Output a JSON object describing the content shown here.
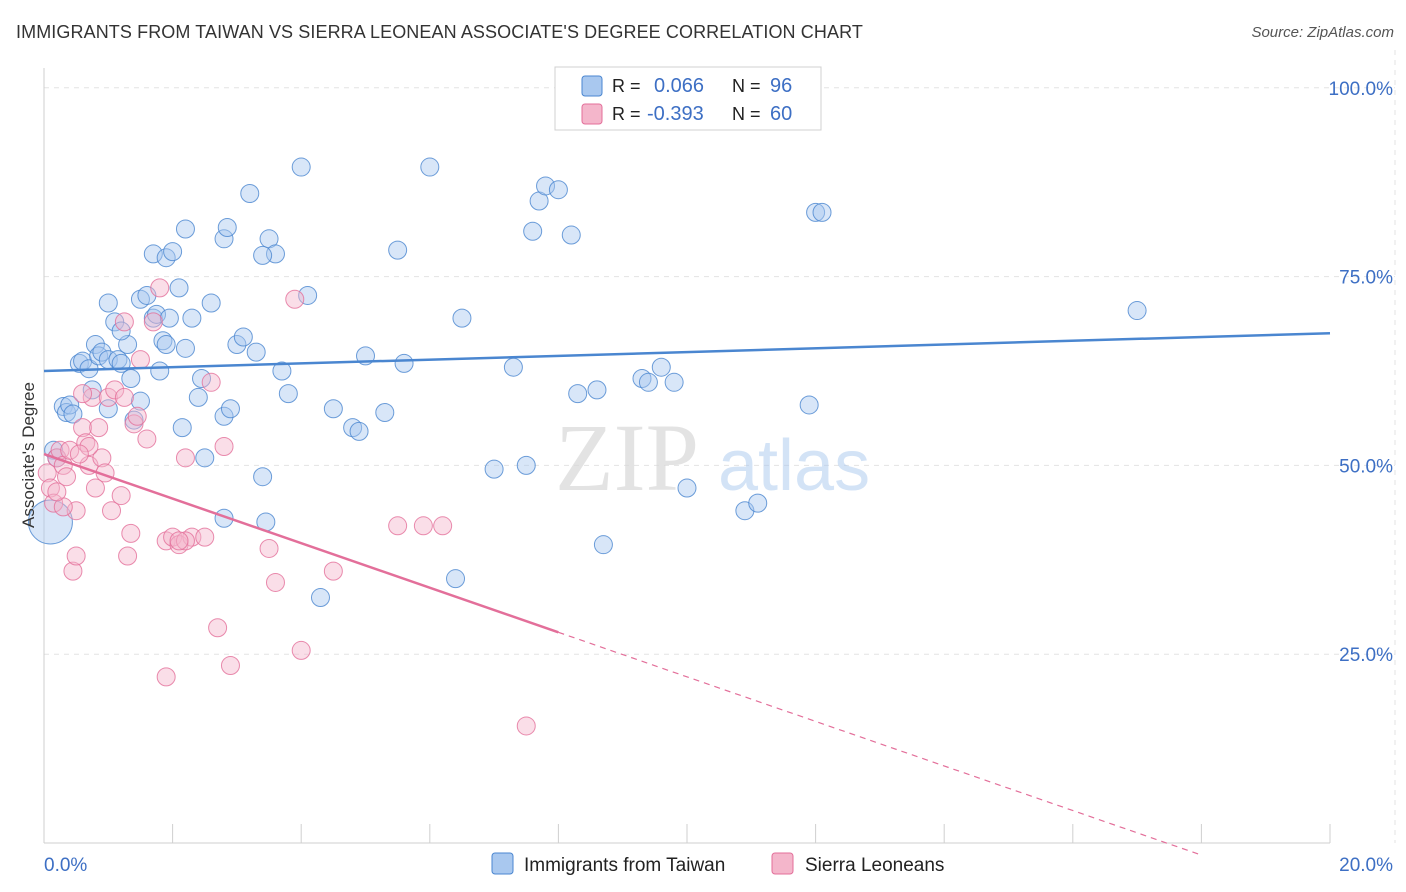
{
  "title": "IMMIGRANTS FROM TAIWAN VS SIERRA LEONEAN ASSOCIATE'S DEGREE CORRELATION CHART",
  "source": "Source: ZipAtlas.com",
  "watermark": {
    "zip": "ZIP",
    "atlas": "atlas"
  },
  "colors": {
    "blue": "#4a86d0",
    "blue_fill": "#a9c8ef",
    "pink": "#e36f9a",
    "pink_fill": "#f4b6cb",
    "grid": "#e3e3e3",
    "tick_text": "#3d6fc4"
  },
  "chart_data": {
    "type": "scatter",
    "xlabel": "",
    "ylabel": "Associate's Degree",
    "xlim": [
      0,
      20
    ],
    "ylim": [
      0,
      105
    ],
    "x_tick_labels": [
      "0.0%",
      "20.0%"
    ],
    "y_ticks": [
      25,
      50,
      75,
      100
    ],
    "y_tick_labels": [
      "25.0%",
      "50.0%",
      "75.0%",
      "100.0%"
    ],
    "legend": {
      "position": "top-center",
      "rows": [
        {
          "r_label": "R = ",
          "r_value": "0.066",
          "n_label": "N = ",
          "n_value": "96"
        },
        {
          "r_label": "R = ",
          "r_value": "-0.393",
          "n_label": "N = ",
          "n_value": "60"
        }
      ]
    },
    "series": [
      {
        "name": "Immigrants from Taiwan",
        "color": "#4a86d0",
        "trend": {
          "x0": 0,
          "y0": 62.5,
          "x1": 20,
          "y1": 67.5
        },
        "points": [
          [
            0.1,
            42.5
          ],
          [
            0.15,
            52
          ],
          [
            0.2,
            51
          ],
          [
            0.3,
            57.8
          ],
          [
            0.35,
            57
          ],
          [
            0.4,
            58
          ],
          [
            0.45,
            56.8
          ],
          [
            0.55,
            63.5
          ],
          [
            0.6,
            63.8
          ],
          [
            0.7,
            62.8
          ],
          [
            0.75,
            60
          ],
          [
            0.8,
            66
          ],
          [
            0.85,
            64.5
          ],
          [
            0.9,
            65
          ],
          [
            1.0,
            64
          ],
          [
            1.0,
            57.5
          ],
          [
            1.0,
            71.5
          ],
          [
            1.1,
            69
          ],
          [
            1.15,
            64
          ],
          [
            1.2,
            63.5
          ],
          [
            1.3,
            66
          ],
          [
            1.35,
            61.5
          ],
          [
            1.4,
            56
          ],
          [
            1.5,
            72
          ],
          [
            1.5,
            58.5
          ],
          [
            1.6,
            72.5
          ],
          [
            1.7,
            69.5
          ],
          [
            1.75,
            70
          ],
          [
            1.8,
            62.5
          ],
          [
            1.85,
            66.5
          ],
          [
            1.9,
            66
          ],
          [
            1.95,
            69.5
          ],
          [
            2.1,
            73.5
          ],
          [
            2.15,
            55
          ],
          [
            2.2,
            65.5
          ],
          [
            2.3,
            69.5
          ],
          [
            2.4,
            59
          ],
          [
            2.45,
            61.5
          ],
          [
            2.5,
            51
          ],
          [
            2.6,
            71.5
          ],
          [
            2.8,
            56.5
          ],
          [
            2.9,
            57.5
          ],
          [
            3.0,
            66
          ],
          [
            3.1,
            67
          ],
          [
            3.3,
            65
          ],
          [
            2.8,
            80
          ],
          [
            2.85,
            81.5
          ],
          [
            3.2,
            86
          ],
          [
            3.5,
            80
          ],
          [
            3.6,
            78
          ],
          [
            3.7,
            62.5
          ],
          [
            3.8,
            59.5
          ],
          [
            4.0,
            89.5
          ],
          [
            4.1,
            72.5
          ],
          [
            4.5,
            57.5
          ],
          [
            4.8,
            55
          ],
          [
            4.9,
            54.5
          ],
          [
            5.0,
            64.5
          ],
          [
            5.3,
            57
          ],
          [
            5.5,
            78.5
          ],
          [
            5.6,
            63.5
          ],
          [
            6.0,
            89.5
          ],
          [
            6.5,
            69.5
          ],
          [
            7.0,
            49.5
          ],
          [
            7.3,
            63
          ],
          [
            7.5,
            50
          ],
          [
            7.6,
            81
          ],
          [
            7.7,
            85
          ],
          [
            7.8,
            87
          ],
          [
            8.0,
            86.5
          ],
          [
            8.2,
            80.5
          ],
          [
            8.3,
            59.5
          ],
          [
            8.6,
            60
          ],
          [
            8.7,
            39.5
          ],
          [
            9.3,
            61.5
          ],
          [
            9.4,
            61
          ],
          [
            9.6,
            63
          ],
          [
            9.8,
            61
          ],
          [
            10.0,
            47
          ],
          [
            10.9,
            44
          ],
          [
            11.1,
            45
          ],
          [
            11.9,
            58
          ],
          [
            12.0,
            83.5
          ],
          [
            12.1,
            83.5
          ],
          [
            17.0,
            70.5
          ],
          [
            2.8,
            43
          ],
          [
            3.4,
            48.5
          ],
          [
            3.45,
            42.5
          ],
          [
            4.3,
            32.5
          ],
          [
            6.4,
            35
          ],
          [
            1.7,
            78
          ],
          [
            1.9,
            77.5
          ],
          [
            2.2,
            81.3
          ],
          [
            3.4,
            77.8
          ],
          [
            2.0,
            78.3
          ],
          [
            1.2,
            67.8
          ]
        ]
      },
      {
        "name": "Sierra Leoneans",
        "color": "#e36f9a",
        "trend": {
          "x0": 0,
          "y0": 51.5,
          "x1": 20,
          "y1": -7.5,
          "solid_until": 8.0
        },
        "points": [
          [
            0.05,
            49
          ],
          [
            0.1,
            47
          ],
          [
            0.15,
            45
          ],
          [
            0.2,
            51
          ],
          [
            0.25,
            52
          ],
          [
            0.3,
            50
          ],
          [
            0.35,
            48.5
          ],
          [
            0.4,
            52
          ],
          [
            0.45,
            36
          ],
          [
            0.5,
            44
          ],
          [
            0.6,
            55
          ],
          [
            0.65,
            53
          ],
          [
            0.7,
            50
          ],
          [
            0.75,
            59
          ],
          [
            0.8,
            47
          ],
          [
            0.85,
            55
          ],
          [
            0.9,
            51
          ],
          [
            0.95,
            49
          ],
          [
            1.0,
            59
          ],
          [
            1.05,
            44
          ],
          [
            1.1,
            60
          ],
          [
            1.2,
            46
          ],
          [
            1.25,
            59
          ],
          [
            1.3,
            38
          ],
          [
            1.35,
            41
          ],
          [
            1.4,
            55.5
          ],
          [
            1.45,
            56.5
          ],
          [
            1.5,
            64
          ],
          [
            1.6,
            53.5
          ],
          [
            1.7,
            69
          ],
          [
            1.8,
            73.5
          ],
          [
            1.9,
            40
          ],
          [
            2.0,
            40.5
          ],
          [
            2.1,
            39.5
          ],
          [
            2.2,
            51
          ],
          [
            2.3,
            40.5
          ],
          [
            2.5,
            40.5
          ],
          [
            2.6,
            61
          ],
          [
            2.7,
            28.5
          ],
          [
            2.8,
            52.5
          ],
          [
            2.9,
            23.5
          ],
          [
            3.5,
            39
          ],
          [
            3.6,
            34.5
          ],
          [
            3.9,
            72
          ],
          [
            4.0,
            25.5
          ],
          [
            4.5,
            36
          ],
          [
            5.5,
            42
          ],
          [
            5.9,
            42
          ],
          [
            6.2,
            42
          ],
          [
            7.5,
            15.5
          ],
          [
            0.5,
            38
          ],
          [
            0.6,
            59.5
          ],
          [
            0.7,
            52.5
          ],
          [
            0.55,
            51.5
          ],
          [
            1.25,
            69
          ],
          [
            1.9,
            22
          ],
          [
            2.2,
            40
          ],
          [
            2.1,
            40
          ],
          [
            0.3,
            44.5
          ],
          [
            0.2,
            46.5
          ]
        ]
      }
    ]
  }
}
